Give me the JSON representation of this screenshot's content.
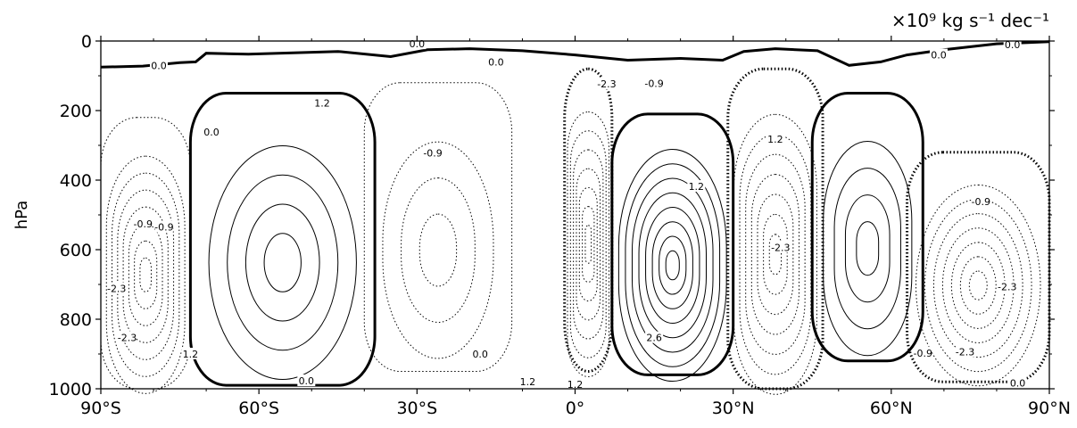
{
  "chart_data": {
    "type": "contour",
    "title": "",
    "units_label": "×10⁹ kg s⁻¹ dec⁻¹",
    "xlabel": "",
    "ylabel": "hPa",
    "xlim": [
      -90,
      90
    ],
    "ylim": [
      1000,
      0
    ],
    "x_ticks": [
      {
        "value": -90,
        "label": "90°S"
      },
      {
        "value": -60,
        "label": "60°S"
      },
      {
        "value": -30,
        "label": "30°S"
      },
      {
        "value": 0,
        "label": "0°"
      },
      {
        "value": 30,
        "label": "30°N"
      },
      {
        "value": 60,
        "label": "60°N"
      },
      {
        "value": 90,
        "label": "90°N"
      }
    ],
    "y_ticks": [
      {
        "value": 0,
        "label": "0"
      },
      {
        "value": 200,
        "label": "200"
      },
      {
        "value": 400,
        "label": "400"
      },
      {
        "value": 600,
        "label": "600"
      },
      {
        "value": 800,
        "label": "800"
      },
      {
        "value": 1000,
        "label": "1000"
      }
    ],
    "contour_levels": [
      -2.3,
      -0.9,
      0.0,
      1.2,
      2.6
    ],
    "line_styles": {
      "positive": "solid",
      "zero": "thick solid",
      "negative": "dotted"
    },
    "contour_labels": [
      {
        "text": "0.0",
        "x": -79,
        "y": 70
      },
      {
        "text": "0.0",
        "x": -30,
        "y": 8
      },
      {
        "text": "0.0",
        "x": -15,
        "y": 60
      },
      {
        "text": "0.0",
        "x": 83,
        "y": 10
      },
      {
        "text": "0.0",
        "x": -69,
        "y": 262
      },
      {
        "text": "0.0",
        "x": -51,
        "y": 977
      },
      {
        "text": "0.0",
        "x": -18,
        "y": 900
      },
      {
        "text": "0.0",
        "x": 84,
        "y": 983
      },
      {
        "text": "1.2",
        "x": -48,
        "y": 178
      },
      {
        "text": "1.2",
        "x": 38,
        "y": 282
      },
      {
        "text": "1.2",
        "x": 23,
        "y": 418
      },
      {
        "text": "1.2",
        "x": -9,
        "y": 980
      },
      {
        "text": "1.2",
        "x": 0,
        "y": 987
      },
      {
        "text": "1.2",
        "x": -73,
        "y": 900
      },
      {
        "text": "-0.9",
        "x": -27,
        "y": 322
      },
      {
        "text": "-0.9",
        "x": 15,
        "y": 122
      },
      {
        "text": "-0.9",
        "x": -82,
        "y": 525
      },
      {
        "text": "-0.9",
        "x": -78,
        "y": 535
      },
      {
        "text": "-0.9",
        "x": 77,
        "y": 462
      },
      {
        "text": "-0.9",
        "x": 66,
        "y": 897
      },
      {
        "text": "-2.3",
        "x": 6,
        "y": 123
      },
      {
        "text": "-2.3",
        "x": 39,
        "y": 593
      },
      {
        "text": "-2.3",
        "x": -87,
        "y": 712
      },
      {
        "text": "-2.3",
        "x": -85,
        "y": 852
      },
      {
        "text": "-2.3",
        "x": 82,
        "y": 707
      },
      {
        "text": "-2.3",
        "x": 74,
        "y": 893
      },
      {
        "text": "2.6",
        "x": 15,
        "y": 853
      },
      {
        "text": "0.0",
        "x": 69,
        "y": 40
      }
    ],
    "cells": [
      {
        "sign": "positive",
        "note": "SH mid-latitude cell",
        "x": [
          -73,
          -38
        ],
        "y": [
          150,
          990
        ],
        "peak": 1.2
      },
      {
        "sign": "negative",
        "note": "SH Ferrel-side cell",
        "x": [
          -40,
          -12
        ],
        "y": [
          120,
          950
        ],
        "peak": -0.9
      },
      {
        "sign": "negative",
        "note": "Tropical cell",
        "x": [
          -2,
          7
        ],
        "y": [
          80,
          950
        ],
        "peak": -2.3
      },
      {
        "sign": "positive",
        "note": "NH tropical cell",
        "x": [
          7,
          30
        ],
        "y": [
          210,
          960
        ],
        "peak": 2.6
      },
      {
        "sign": "negative",
        "note": "NH subtropical cell",
        "x": [
          29,
          47
        ],
        "y": [
          80,
          1000
        ],
        "peak": -2.3
      },
      {
        "sign": "positive",
        "note": "NH mid-latitude cell",
        "x": [
          45,
          66
        ],
        "y": [
          150,
          920
        ],
        "peak": 1.2
      },
      {
        "sign": "negative",
        "note": "NH high-latitude cell",
        "x": [
          63,
          90
        ],
        "y": [
          320,
          980
        ],
        "peak": -2.3
      },
      {
        "sign": "negative",
        "note": "SH polar cell",
        "x": [
          -90,
          -73
        ],
        "y": [
          220,
          1000
        ],
        "peak": -2.3
      }
    ]
  }
}
